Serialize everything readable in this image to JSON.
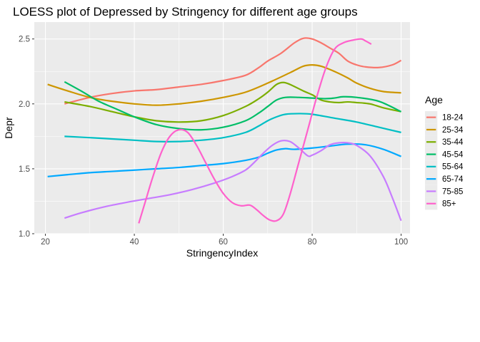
{
  "chart_data": {
    "type": "line",
    "title": "LOESS plot of Depressed by Stringency for different age groups",
    "xlabel": "StringencyIndex",
    "ylabel": "Depr",
    "xlim": [
      17.5,
      102
    ],
    "ylim": [
      1.0,
      2.63
    ],
    "x_ticks": [
      20,
      40,
      60,
      80,
      100
    ],
    "x_tick_labels": [
      "20",
      "40",
      "60",
      "80",
      "100"
    ],
    "y_ticks": [
      1.0,
      1.5,
      2.0,
      2.5
    ],
    "y_tick_labels": [
      "1.0",
      "1.5",
      "2.0",
      "2.5"
    ],
    "grid": true,
    "legend": {
      "title": "Age",
      "position": "right"
    },
    "series": [
      {
        "name": "18-24",
        "color": "#F8766D",
        "points": [
          [
            24.3,
            2.0
          ],
          [
            30,
            2.05
          ],
          [
            35,
            2.08
          ],
          [
            40,
            2.1
          ],
          [
            45,
            2.11
          ],
          [
            50,
            2.13
          ],
          [
            55,
            2.15
          ],
          [
            60,
            2.18
          ],
          [
            65,
            2.22
          ],
          [
            68,
            2.28
          ],
          [
            70,
            2.33
          ],
          [
            73,
            2.39
          ],
          [
            76,
            2.47
          ],
          [
            78,
            2.505
          ],
          [
            80,
            2.5
          ],
          [
            82,
            2.47
          ],
          [
            84,
            2.43
          ],
          [
            86,
            2.39
          ],
          [
            88,
            2.33
          ],
          [
            90,
            2.3
          ],
          [
            92,
            2.285
          ],
          [
            95,
            2.28
          ],
          [
            98,
            2.3
          ],
          [
            100,
            2.335
          ]
        ]
      },
      {
        "name": "25-34",
        "color": "#CD9600",
        "points": [
          [
            20.5,
            2.15
          ],
          [
            25,
            2.1
          ],
          [
            30,
            2.05
          ],
          [
            35,
            2.02
          ],
          [
            40,
            2.0
          ],
          [
            45,
            1.99
          ],
          [
            50,
            2.0
          ],
          [
            55,
            2.02
          ],
          [
            60,
            2.05
          ],
          [
            65,
            2.09
          ],
          [
            70,
            2.16
          ],
          [
            75,
            2.24
          ],
          [
            78,
            2.29
          ],
          [
            80,
            2.3
          ],
          [
            82,
            2.29
          ],
          [
            85,
            2.25
          ],
          [
            88,
            2.2
          ],
          [
            90,
            2.16
          ],
          [
            93,
            2.12
          ],
          [
            96,
            2.095
          ],
          [
            100,
            2.085
          ]
        ]
      },
      {
        "name": "35-44",
        "color": "#7CAE00",
        "points": [
          [
            24.3,
            2.015
          ],
          [
            30,
            1.98
          ],
          [
            35,
            1.94
          ],
          [
            40,
            1.9
          ],
          [
            45,
            1.87
          ],
          [
            50,
            1.86
          ],
          [
            55,
            1.87
          ],
          [
            60,
            1.91
          ],
          [
            65,
            1.98
          ],
          [
            68,
            2.04
          ],
          [
            70,
            2.09
          ],
          [
            72,
            2.15
          ],
          [
            73.5,
            2.165
          ],
          [
            75,
            2.15
          ],
          [
            78,
            2.1
          ],
          [
            80,
            2.07
          ],
          [
            82,
            2.03
          ],
          [
            84,
            2.015
          ],
          [
            86,
            2.01
          ],
          [
            88,
            2.015
          ],
          [
            90,
            2.01
          ],
          [
            93,
            2.0
          ],
          [
            96,
            1.97
          ],
          [
            100,
            1.94
          ]
        ]
      },
      {
        "name": "45-54",
        "color": "#00BE67",
        "points": [
          [
            24.3,
            2.17
          ],
          [
            28,
            2.1
          ],
          [
            32,
            2.02
          ],
          [
            36,
            1.96
          ],
          [
            40,
            1.9
          ],
          [
            45,
            1.84
          ],
          [
            50,
            1.81
          ],
          [
            55,
            1.8
          ],
          [
            60,
            1.82
          ],
          [
            65,
            1.87
          ],
          [
            68,
            1.93
          ],
          [
            70,
            1.98
          ],
          [
            72,
            2.03
          ],
          [
            74,
            2.05
          ],
          [
            77,
            2.05
          ],
          [
            80,
            2.045
          ],
          [
            83,
            2.04
          ],
          [
            85,
            2.045
          ],
          [
            87,
            2.055
          ],
          [
            90,
            2.05
          ],
          [
            95,
            2.02
          ],
          [
            100,
            1.94
          ]
        ]
      },
      {
        "name": "55-64",
        "color": "#00BFC4",
        "points": [
          [
            24.3,
            1.75
          ],
          [
            30,
            1.74
          ],
          [
            35,
            1.73
          ],
          [
            40,
            1.72
          ],
          [
            45,
            1.71
          ],
          [
            50,
            1.71
          ],
          [
            55,
            1.72
          ],
          [
            60,
            1.74
          ],
          [
            65,
            1.78
          ],
          [
            68,
            1.83
          ],
          [
            70,
            1.87
          ],
          [
            72,
            1.9
          ],
          [
            74,
            1.92
          ],
          [
            77,
            1.925
          ],
          [
            80,
            1.92
          ],
          [
            85,
            1.89
          ],
          [
            90,
            1.86
          ],
          [
            95,
            1.82
          ],
          [
            100,
            1.78
          ]
        ]
      },
      {
        "name": "65-74",
        "color": "#00A9FF",
        "points": [
          [
            20.5,
            1.44
          ],
          [
            25,
            1.455
          ],
          [
            30,
            1.47
          ],
          [
            35,
            1.48
          ],
          [
            40,
            1.49
          ],
          [
            45,
            1.5
          ],
          [
            50,
            1.51
          ],
          [
            55,
            1.525
          ],
          [
            60,
            1.54
          ],
          [
            65,
            1.565
          ],
          [
            68,
            1.59
          ],
          [
            70,
            1.62
          ],
          [
            72,
            1.645
          ],
          [
            74,
            1.655
          ],
          [
            76,
            1.65
          ],
          [
            80,
            1.66
          ],
          [
            84,
            1.675
          ],
          [
            88,
            1.69
          ],
          [
            92,
            1.685
          ],
          [
            96,
            1.65
          ],
          [
            100,
            1.595
          ]
        ]
      },
      {
        "name": "75-85",
        "color": "#C77CFF",
        "points": [
          [
            24.3,
            1.12
          ],
          [
            28,
            1.16
          ],
          [
            33,
            1.205
          ],
          [
            38,
            1.24
          ],
          [
            43,
            1.27
          ],
          [
            48,
            1.3
          ],
          [
            53,
            1.34
          ],
          [
            58,
            1.39
          ],
          [
            62,
            1.44
          ],
          [
            65,
            1.49
          ],
          [
            67,
            1.55
          ],
          [
            69,
            1.62
          ],
          [
            71,
            1.68
          ],
          [
            73,
            1.715
          ],
          [
            75,
            1.71
          ],
          [
            77,
            1.66
          ],
          [
            79,
            1.6
          ],
          [
            80,
            1.605
          ],
          [
            82,
            1.64
          ],
          [
            84,
            1.685
          ],
          [
            86,
            1.7
          ],
          [
            88,
            1.7
          ],
          [
            90,
            1.68
          ],
          [
            93,
            1.6
          ],
          [
            96,
            1.44
          ],
          [
            98,
            1.28
          ],
          [
            100,
            1.1
          ]
        ]
      },
      {
        "name": "85+",
        "color": "#FF61CC",
        "points": [
          [
            41,
            1.08
          ],
          [
            42.5,
            1.25
          ],
          [
            44,
            1.42
          ],
          [
            46,
            1.62
          ],
          [
            48,
            1.75
          ],
          [
            50,
            1.8
          ],
          [
            52,
            1.78
          ],
          [
            54,
            1.68
          ],
          [
            56,
            1.55
          ],
          [
            58,
            1.42
          ],
          [
            60,
            1.31
          ],
          [
            62,
            1.24
          ],
          [
            64,
            1.215
          ],
          [
            66,
            1.22
          ],
          [
            67.5,
            1.185
          ],
          [
            69,
            1.14
          ],
          [
            70.5,
            1.105
          ],
          [
            72,
            1.1
          ],
          [
            73.5,
            1.15
          ],
          [
            75,
            1.3
          ],
          [
            77,
            1.55
          ],
          [
            79,
            1.8
          ],
          [
            81,
            2.05
          ],
          [
            83,
            2.27
          ],
          [
            85,
            2.42
          ],
          [
            87,
            2.47
          ],
          [
            89,
            2.49
          ],
          [
            91,
            2.5
          ],
          [
            92,
            2.485
          ],
          [
            93.3,
            2.46
          ]
        ]
      }
    ]
  }
}
